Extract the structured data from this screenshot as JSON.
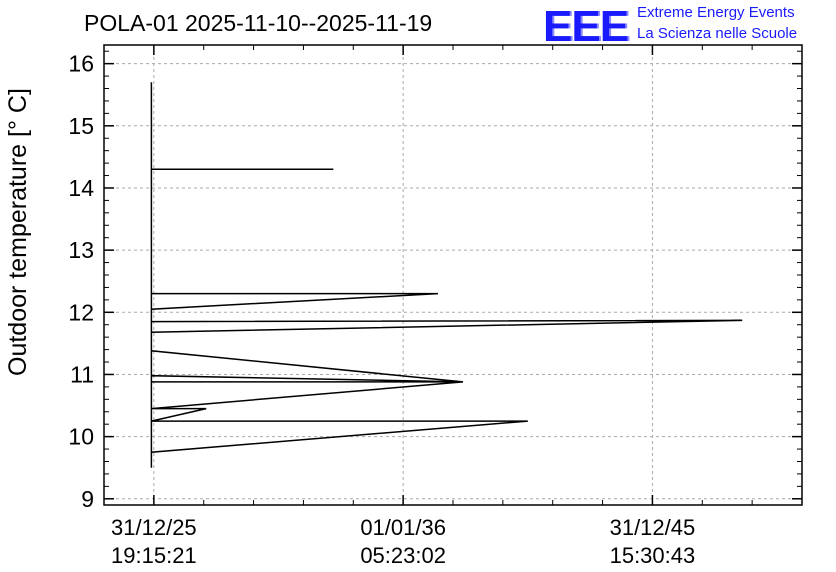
{
  "chart_data": {
    "type": "line",
    "title": "POLA-01 2025-11-10--2025-11-19",
    "ylabel": "Outdoor temperature [° C]",
    "xlabel": "",
    "ylim": [
      8.9,
      16.3
    ],
    "xlim": [
      -0.2,
      2.6
    ],
    "yticks": [
      9,
      10,
      11,
      12,
      13,
      14,
      15,
      16
    ],
    "xticks": [
      {
        "x": 0,
        "label_date": "31/12/25",
        "label_time": "19:15:21"
      },
      {
        "x": 1,
        "label_date": "01/01/36",
        "label_time": "05:23:02"
      },
      {
        "x": 2,
        "label_date": "31/12/45",
        "label_time": "15:30:43"
      }
    ],
    "grid": true,
    "series": [
      {
        "color": "#000000",
        "points": [
          [
            -0.01,
            9.5
          ],
          [
            -0.01,
            15.7
          ],
          [
            -0.01,
            14.3
          ],
          [
            0.72,
            14.3
          ],
          [
            -0.01,
            14.3
          ],
          [
            -0.01,
            12.3
          ],
          [
            1.14,
            12.3
          ],
          [
            -0.01,
            12.05
          ],
          [
            -0.01,
            11.85
          ],
          [
            2.36,
            11.87
          ],
          [
            -0.01,
            11.68
          ],
          [
            -0.01,
            11.38
          ],
          [
            1.24,
            10.88
          ],
          [
            -0.01,
            10.98
          ],
          [
            -0.01,
            10.88
          ],
          [
            1.24,
            10.88
          ],
          [
            -0.01,
            10.45
          ],
          [
            0.21,
            10.45
          ],
          [
            -0.01,
            10.25
          ],
          [
            1.5,
            10.25
          ],
          [
            -0.01,
            9.75
          ],
          [
            -0.01,
            9.5
          ]
        ]
      }
    ]
  },
  "header": {
    "title": "POLA-01 2025-11-10--2025-11-19",
    "logo_text": "EEE",
    "brand_line1": "Extreme Energy Events",
    "brand_line2": "La Scienza nelle Scuole"
  },
  "colors": {
    "brand": "#1a1aff",
    "grid": "#aaaaaa",
    "line": "#000000"
  }
}
